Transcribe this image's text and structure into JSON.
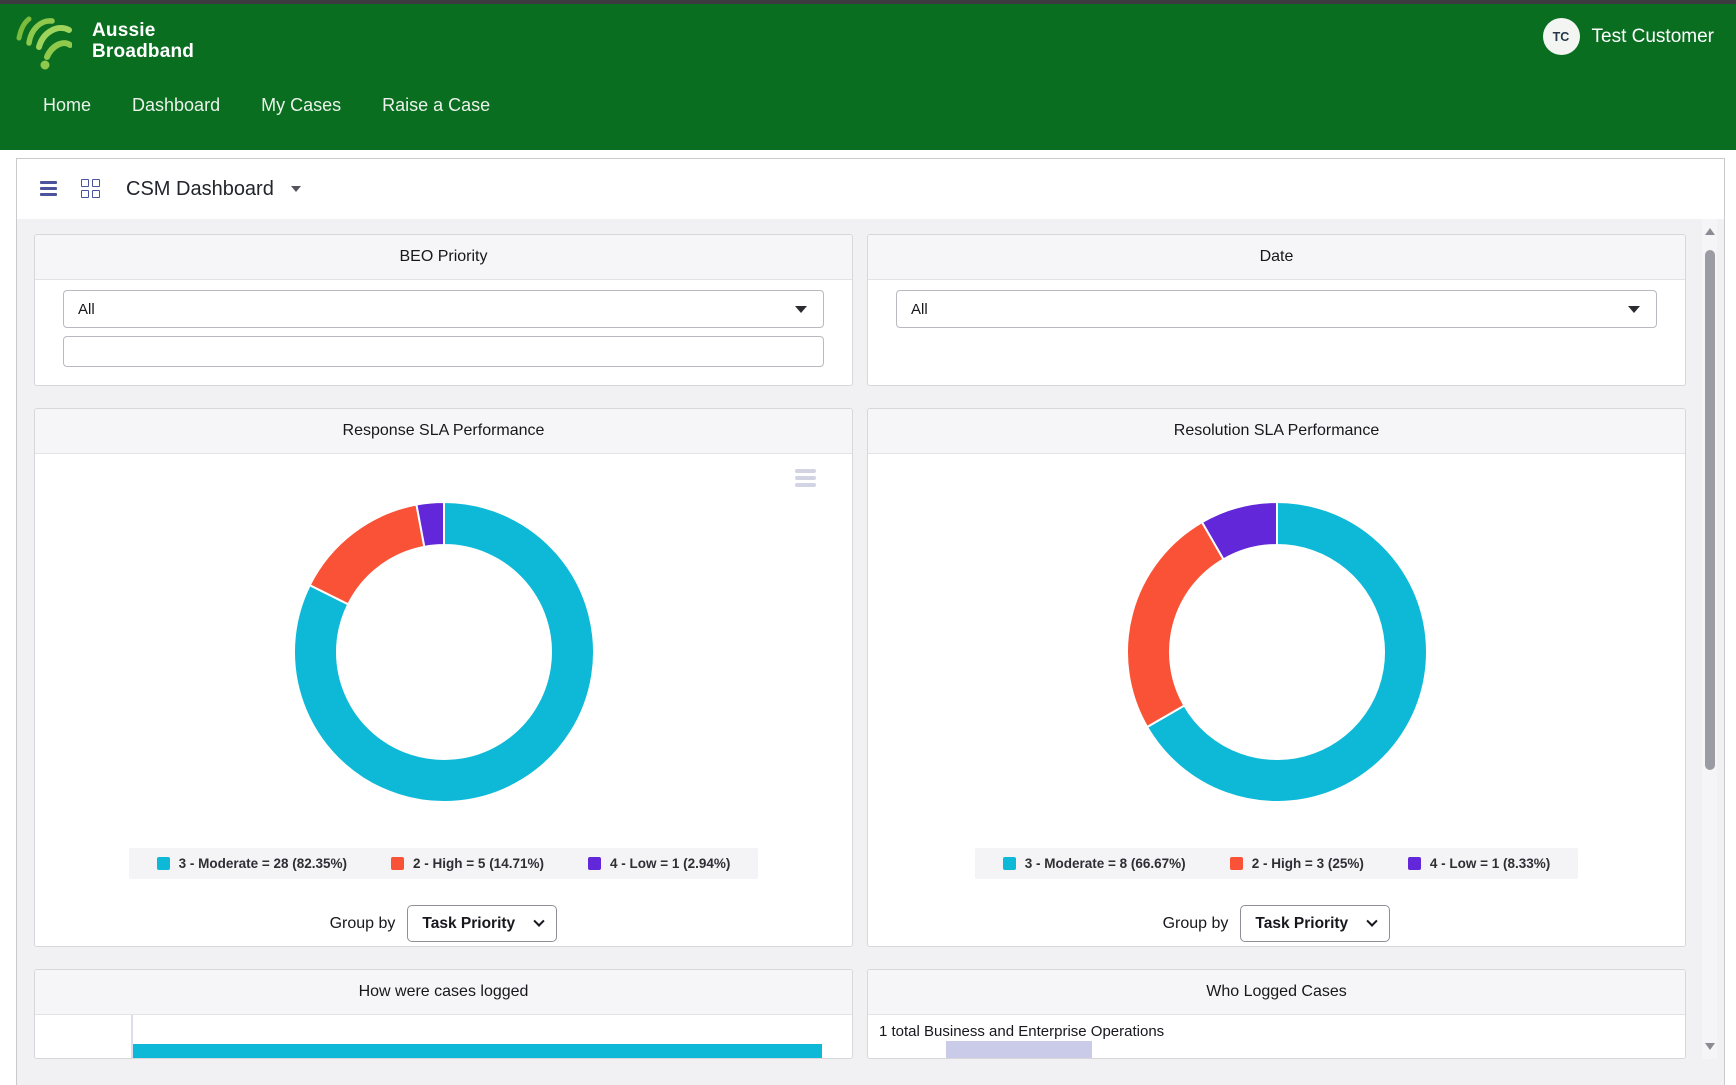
{
  "header": {
    "background": "#0a6e21",
    "brand": {
      "line1": "Aussie",
      "line2": "Broadband"
    },
    "nav": [
      {
        "label": "Home"
      },
      {
        "label": "Dashboard"
      },
      {
        "label": "My Cases"
      },
      {
        "label": "Raise a Case"
      }
    ],
    "user": {
      "initials": "TC",
      "name": "Test Customer"
    }
  },
  "toolbar": {
    "title": "CSM Dashboard"
  },
  "filters": [
    {
      "title": "BEO Priority",
      "value": "All",
      "extra_input_value": ""
    },
    {
      "title": "Date",
      "value": "All"
    }
  ],
  "chart_data": [
    {
      "type": "pie",
      "subtype": "donut",
      "title": "Response SLA Performance",
      "labels": [
        "3 - Moderate",
        "2 - High",
        "4 - Low"
      ],
      "values": [
        28,
        5,
        1
      ],
      "percents": [
        "82.35%",
        "14.71%",
        "2.94%"
      ],
      "colors": [
        "#0db9d7",
        "#fa5236",
        "#6127d8"
      ],
      "legend": [
        "3 - Moderate = 28 (82.35%)",
        "2 - High = 5 (14.71%)",
        "4 - Low = 1 (2.94%)"
      ],
      "legend_position": "bottom",
      "start_angle": "top",
      "direction": "clockwise",
      "group_by_label": "Group by",
      "group_by_value": "Task Priority"
    },
    {
      "type": "pie",
      "subtype": "donut",
      "title": "Resolution SLA Performance",
      "labels": [
        "3 - Moderate",
        "2 - High",
        "4 - Low"
      ],
      "values": [
        8,
        3,
        1
      ],
      "percents": [
        "66.67%",
        "25%",
        "8.33%"
      ],
      "colors": [
        "#0db9d7",
        "#fa5236",
        "#6127d8"
      ],
      "legend": [
        "3 - Moderate = 8 (66.67%)",
        "2 - High = 3 (25%)",
        "4 - Low = 1 (8.33%)"
      ],
      "legend_position": "bottom",
      "start_angle": "top",
      "direction": "clockwise",
      "group_by_label": "Group by",
      "group_by_value": "Task Priority"
    },
    {
      "type": "bar",
      "orientation": "horizontal",
      "title": "How were cases logged",
      "partially_visible": true,
      "bar_color": "#0db9d7"
    },
    {
      "type": "bar",
      "title": "Who Logged Cases",
      "annotation": "1 total Business and Enterprise Operations",
      "partially_visible": true,
      "bar_color": "#c9cbe8"
    }
  ],
  "colors": {
    "header_green": "#0a6e21",
    "logo_green": "#8fc94c",
    "donut_moderate": "#0db9d7",
    "donut_high": "#fa5236",
    "donut_low": "#6127d8",
    "panel_header_bg": "#f6f6f8",
    "page_bg": "#f1f1f4",
    "chrome_icon_navy": "#4b539b"
  }
}
